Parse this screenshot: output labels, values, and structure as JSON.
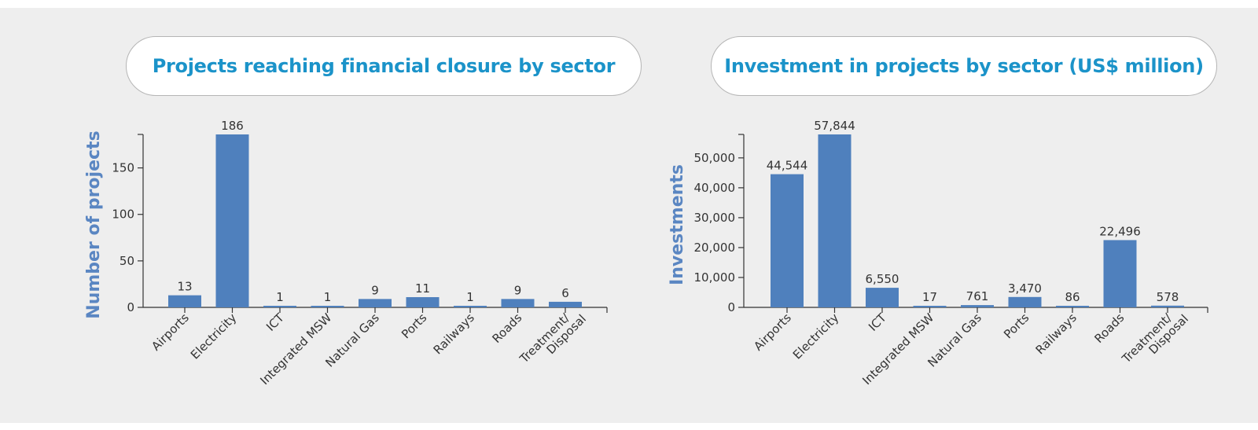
{
  "colors": {
    "bar": "#4f80bd",
    "title": "#1b93c9",
    "axis_title": "#5a86c2",
    "panel": "#eeeeee"
  },
  "chart_data": [
    {
      "type": "bar",
      "title": "Projects reaching financial closure by sector",
      "xlabel": "",
      "ylabel": "Number of projects",
      "ylim": [
        0,
        186
      ],
      "yticks": [
        0,
        50,
        100,
        150
      ],
      "ytick_labels": [
        "0",
        "50",
        "100",
        "150"
      ],
      "categories": [
        "Airports",
        "Electricity",
        "ICT",
        "Integrated MSW",
        "Natural Gas",
        "Ports",
        "Railways",
        "Roads",
        "Treatment/ Disposal"
      ],
      "values": [
        13,
        186,
        1,
        1,
        9,
        11,
        1,
        9,
        6
      ],
      "value_labels": [
        "13",
        "186",
        "1",
        "1",
        "9",
        "11",
        "1",
        "9",
        "6"
      ]
    },
    {
      "type": "bar",
      "title": "Investment in projects by sector (US$ million)",
      "xlabel": "",
      "ylabel": "Investments",
      "ylim": [
        0,
        57844
      ],
      "yticks": [
        0,
        10000,
        20000,
        30000,
        40000,
        50000
      ],
      "ytick_labels": [
        "0",
        "10,000",
        "20,000",
        "30,000",
        "40,000",
        "50,000"
      ],
      "categories": [
        "Airports",
        "Electricity",
        "ICT",
        "Integrated MSW",
        "Natural Gas",
        "Ports",
        "Railways",
        "Roads",
        "Treatment/ Disposal"
      ],
      "values": [
        44544,
        57844,
        6550,
        17,
        761,
        3470,
        86,
        22496,
        578
      ],
      "value_labels": [
        "44,544",
        "57,844",
        "6,550",
        "17",
        "761",
        "3,470",
        "86",
        "22,496",
        "578"
      ]
    }
  ]
}
